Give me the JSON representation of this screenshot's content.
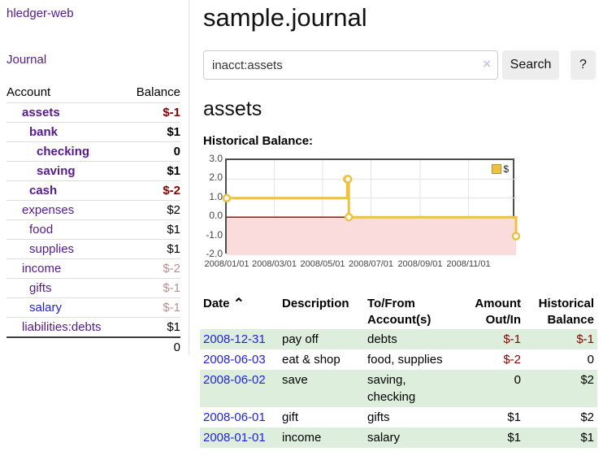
{
  "colors": {
    "link_purple": "#551a8b",
    "link_blue": "#2222dd",
    "negative_red": "#8b0000",
    "negative_muted": "#bc8f8f",
    "row_stripe_green": "#ddeedd",
    "series_gold": "#edc240",
    "negative_region_pink": "#fbdcdc",
    "zero_line_red": "#8b0000"
  },
  "app": {
    "title": "hledger-web",
    "nav_journal": "Journal"
  },
  "sidebar_table": {
    "headers": [
      "Account",
      "Balance"
    ],
    "rows": [
      {
        "name": "assets",
        "depth": 1,
        "bold": true,
        "balance": "$-1",
        "balance_style": "neg"
      },
      {
        "name": "bank",
        "depth": 2,
        "bold": true,
        "balance": "$1",
        "balance_style": "pos"
      },
      {
        "name": "checking",
        "depth": 3,
        "bold": true,
        "balance": "0",
        "balance_style": "pos"
      },
      {
        "name": "saving",
        "depth": 3,
        "bold": true,
        "balance": "$1",
        "balance_style": "pos"
      },
      {
        "name": "cash",
        "depth": 2,
        "bold": true,
        "balance": "$-2",
        "balance_style": "neg"
      },
      {
        "name": "expenses",
        "depth": 1,
        "bold": false,
        "balance": "$2",
        "balance_style": "pos"
      },
      {
        "name": "food",
        "depth": 2,
        "bold": false,
        "balance": "$1",
        "balance_style": "pos"
      },
      {
        "name": "supplies",
        "depth": 2,
        "bold": false,
        "balance": "$1",
        "balance_style": "pos"
      },
      {
        "name": "income",
        "depth": 1,
        "bold": false,
        "balance": "$-2",
        "balance_style": "negmuted"
      },
      {
        "name": "gifts",
        "depth": 2,
        "bold": false,
        "balance": "$-1",
        "balance_style": "negmuted"
      },
      {
        "name": "salary",
        "depth": 2,
        "bold": false,
        "link_style": "unvisited",
        "balance": "$-1",
        "balance_style": "negmuted"
      },
      {
        "name": "liabilities:debts",
        "depth": 1,
        "bold": false,
        "balance": "$1",
        "balance_style": "pos"
      }
    ],
    "total": "0"
  },
  "header": {
    "title": "sample.journal"
  },
  "search": {
    "value": "inacct:assets",
    "clear_icon": "×",
    "button": "Search",
    "help_button": "?"
  },
  "account_page": {
    "heading": "assets",
    "chart_label": "Historical Balance:"
  },
  "chart_data": {
    "type": "line",
    "step": true,
    "title": "Historical Balance",
    "series": [
      {
        "name": "$",
        "color": "#edc240",
        "points": [
          [
            "2008-01-01",
            1
          ],
          [
            "2008-06-01",
            2
          ],
          [
            "2008-06-02",
            2
          ],
          [
            "2008-06-03",
            0
          ],
          [
            "2008-12-31",
            -1
          ]
        ]
      }
    ],
    "x_range": [
      "2008-01-01",
      "2008-12-31"
    ],
    "ylim": [
      -2,
      3
    ],
    "y_tick_labels": [
      "3.0",
      "2.0",
      "1.0",
      "0.0",
      "-1.0",
      "-2.0"
    ],
    "y_tick_values": [
      3,
      2,
      1,
      0,
      -1,
      -2
    ],
    "x_tick_labels": [
      "2008/01/01",
      "2008/03/01",
      "2008/05/01",
      "2008/07/01",
      "2008/09/01",
      "2008/11/01"
    ],
    "grid": true,
    "legend_position": "top-right",
    "legend": "$"
  },
  "register": {
    "headers": {
      "date": "Date",
      "description": "Description",
      "account": "To/From Account(s)",
      "amount": "Amount Out/In",
      "balance": "Historical Balance"
    },
    "sort_icon": "⌃",
    "rows": [
      {
        "date": "2008-12-31",
        "description": "pay off",
        "accounts": "debts",
        "amount": "$-1",
        "amount_neg": true,
        "balance": "$-1",
        "balance_neg": true,
        "shaded": true
      },
      {
        "date": "2008-06-03",
        "description": "eat & shop",
        "accounts": "food, supplies",
        "amount": "$-2",
        "amount_neg": true,
        "balance": "0",
        "balance_neg": false,
        "shaded": false
      },
      {
        "date": "2008-06-02",
        "description": "save",
        "accounts": "saving, checking",
        "amount": "0",
        "amount_neg": false,
        "balance": "$2",
        "balance_neg": false,
        "shaded": true
      },
      {
        "date": "2008-06-01",
        "description": "gift",
        "accounts": "gifts",
        "amount": "$1",
        "amount_neg": false,
        "balance": "$2",
        "balance_neg": false,
        "shaded": false
      },
      {
        "date": "2008-01-01",
        "description": "income",
        "accounts": "salary",
        "amount": "$1",
        "amount_neg": false,
        "balance": "$1",
        "balance_neg": false,
        "shaded": true
      }
    ]
  }
}
